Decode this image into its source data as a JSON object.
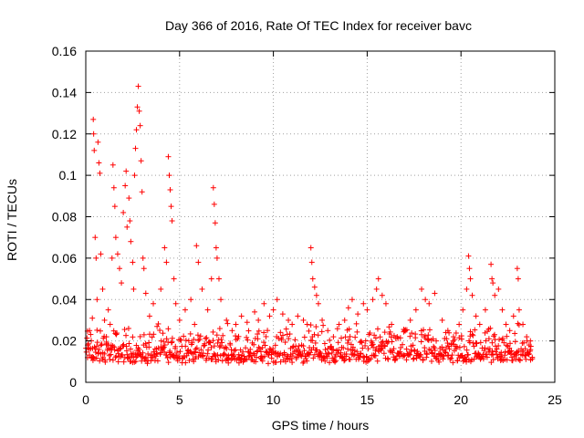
{
  "chart_data": {
    "type": "scatter",
    "title": "Day 366 of 2016, Rate Of TEC Index for receiver bavc",
    "xlabel": "GPS time / hours",
    "ylabel": "ROTI / TECUs",
    "xlim": [
      0,
      25
    ],
    "ylim": [
      0,
      0.16
    ],
    "xticks": [
      0,
      5,
      10,
      15,
      20,
      25
    ],
    "xtick_labels": [
      "0",
      "5",
      "10",
      "15",
      "20",
      "25"
    ],
    "yticks": [
      0,
      0.02,
      0.04,
      0.06,
      0.08,
      0.1,
      0.12,
      0.14,
      0.16
    ],
    "ytick_labels": [
      "0",
      "0.02",
      "0.04",
      "0.06",
      "0.08",
      "0.1",
      "0.12",
      "0.14",
      "0.16"
    ],
    "grid": true,
    "marker": "+",
    "series": [
      {
        "color": "#ff0000",
        "points": [
          [
            0.1,
            0.018
          ],
          [
            0.2,
            0.025
          ],
          [
            0.3,
            0.012
          ],
          [
            0.35,
            0.031
          ],
          [
            0.4,
            0.127
          ],
          [
            0.42,
            0.12
          ],
          [
            0.45,
            0.112
          ],
          [
            0.5,
            0.07
          ],
          [
            0.55,
            0.06
          ],
          [
            0.6,
            0.04
          ],
          [
            0.65,
            0.116
          ],
          [
            0.7,
            0.106
          ],
          [
            0.75,
            0.101
          ],
          [
            0.8,
            0.062
          ],
          [
            0.9,
            0.045
          ],
          [
            1.0,
            0.03
          ],
          [
            1.1,
            0.022
          ],
          [
            1.2,
            0.035
          ],
          [
            1.3,
            0.028
          ],
          [
            1.4,
            0.06
          ],
          [
            1.45,
            0.105
          ],
          [
            1.5,
            0.094
          ],
          [
            1.55,
            0.085
          ],
          [
            1.6,
            0.07
          ],
          [
            1.7,
            0.062
          ],
          [
            1.8,
            0.055
          ],
          [
            1.9,
            0.048
          ],
          [
            2.0,
            0.082
          ],
          [
            2.1,
            0.095
          ],
          [
            2.15,
            0.102
          ],
          [
            2.2,
            0.075
          ],
          [
            2.3,
            0.089
          ],
          [
            2.35,
            0.078
          ],
          [
            2.4,
            0.068
          ],
          [
            2.5,
            0.058
          ],
          [
            2.55,
            0.045
          ],
          [
            2.6,
            0.1
          ],
          [
            2.65,
            0.113
          ],
          [
            2.7,
            0.122
          ],
          [
            2.75,
            0.133
          ],
          [
            2.8,
            0.143
          ],
          [
            2.85,
            0.131
          ],
          [
            2.9,
            0.124
          ],
          [
            2.95,
            0.107
          ],
          [
            3.0,
            0.092
          ],
          [
            3.05,
            0.06
          ],
          [
            3.1,
            0.055
          ],
          [
            3.2,
            0.043
          ],
          [
            3.4,
            0.032
          ],
          [
            3.6,
            0.038
          ],
          [
            3.8,
            0.027
          ],
          [
            4.0,
            0.045
          ],
          [
            4.2,
            0.065
          ],
          [
            4.3,
            0.058
          ],
          [
            4.4,
            0.109
          ],
          [
            4.45,
            0.1
          ],
          [
            4.5,
            0.093
          ],
          [
            4.55,
            0.085
          ],
          [
            4.6,
            0.078
          ],
          [
            4.7,
            0.05
          ],
          [
            4.8,
            0.038
          ],
          [
            5.0,
            0.03
          ],
          [
            5.3,
            0.035
          ],
          [
            5.6,
            0.04
          ],
          [
            5.8,
            0.028
          ],
          [
            5.9,
            0.066
          ],
          [
            6.0,
            0.058
          ],
          [
            6.2,
            0.045
          ],
          [
            6.5,
            0.035
          ],
          [
            6.7,
            0.05
          ],
          [
            6.8,
            0.094
          ],
          [
            6.85,
            0.086
          ],
          [
            6.9,
            0.077
          ],
          [
            6.95,
            0.065
          ],
          [
            7.0,
            0.06
          ],
          [
            7.1,
            0.05
          ],
          [
            7.2,
            0.04
          ],
          [
            7.5,
            0.03
          ],
          [
            7.8,
            0.025
          ],
          [
            8.0,
            0.028
          ],
          [
            8.3,
            0.032
          ],
          [
            8.6,
            0.029
          ],
          [
            9.0,
            0.034
          ],
          [
            9.2,
            0.03
          ],
          [
            9.5,
            0.038
          ],
          [
            9.8,
            0.032
          ],
          [
            10.0,
            0.035
          ],
          [
            10.2,
            0.04
          ],
          [
            10.5,
            0.033
          ],
          [
            10.8,
            0.03
          ],
          [
            11.0,
            0.028
          ],
          [
            11.3,
            0.032
          ],
          [
            11.6,
            0.03
          ],
          [
            11.8,
            0.028
          ],
          [
            12.0,
            0.065
          ],
          [
            12.05,
            0.058
          ],
          [
            12.1,
            0.05
          ],
          [
            12.2,
            0.046
          ],
          [
            12.3,
            0.042
          ],
          [
            12.4,
            0.038
          ],
          [
            12.6,
            0.03
          ],
          [
            12.9,
            0.025
          ],
          [
            13.2,
            0.022
          ],
          [
            13.5,
            0.028
          ],
          [
            13.8,
            0.03
          ],
          [
            14.0,
            0.036
          ],
          [
            14.2,
            0.04
          ],
          [
            14.5,
            0.033
          ],
          [
            14.8,
            0.038
          ],
          [
            15.0,
            0.035
          ],
          [
            15.3,
            0.04
          ],
          [
            15.5,
            0.045
          ],
          [
            15.6,
            0.05
          ],
          [
            15.8,
            0.042
          ],
          [
            16.0,
            0.038
          ],
          [
            16.3,
            0.028
          ],
          [
            16.6,
            0.022
          ],
          [
            17.0,
            0.025
          ],
          [
            17.3,
            0.03
          ],
          [
            17.6,
            0.035
          ],
          [
            17.9,
            0.045
          ],
          [
            18.1,
            0.04
          ],
          [
            18.3,
            0.038
          ],
          [
            18.6,
            0.043
          ],
          [
            19.0,
            0.03
          ],
          [
            19.3,
            0.025
          ],
          [
            19.6,
            0.022
          ],
          [
            19.9,
            0.028
          ],
          [
            20.1,
            0.035
          ],
          [
            20.3,
            0.045
          ],
          [
            20.4,
            0.061
          ],
          [
            20.45,
            0.055
          ],
          [
            20.5,
            0.05
          ],
          [
            20.6,
            0.042
          ],
          [
            20.8,
            0.032
          ],
          [
            21.0,
            0.028
          ],
          [
            21.3,
            0.035
          ],
          [
            21.6,
            0.057
          ],
          [
            21.65,
            0.05
          ],
          [
            21.7,
            0.048
          ],
          [
            21.8,
            0.042
          ],
          [
            22.0,
            0.045
          ],
          [
            22.2,
            0.035
          ],
          [
            22.4,
            0.028
          ],
          [
            22.6,
            0.025
          ],
          [
            22.8,
            0.032
          ],
          [
            23.0,
            0.055
          ],
          [
            23.05,
            0.05
          ],
          [
            23.1,
            0.035
          ],
          [
            23.3,
            0.028
          ],
          [
            23.5,
            0.022
          ],
          [
            23.7,
            0.02
          ]
        ],
        "noise_band": {
          "x_range": [
            0,
            23.8
          ],
          "y_base": 0.009,
          "y_spread": 0.018
        }
      }
    ]
  }
}
